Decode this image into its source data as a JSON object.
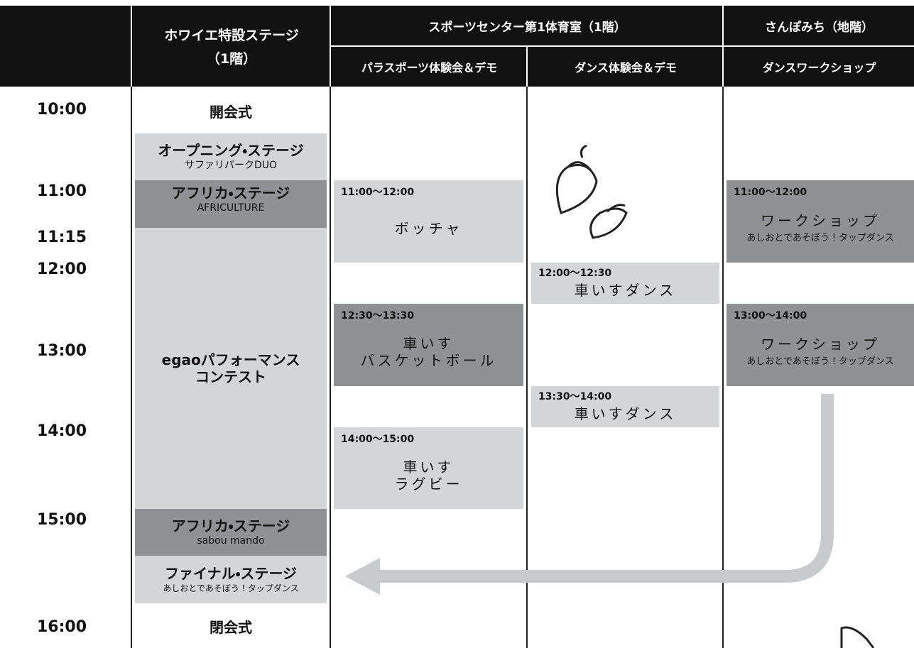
{
  "header": {
    "foyer": [
      "ホワイエ特設ステージ",
      "（1階）"
    ],
    "sports_center": "スポーツセンター第1体育室（1階）",
    "sanpomichi": "さんぽみち（地階）",
    "programs": [
      "パラスポーツ体験会＆デモ",
      "ダンス体験会＆デモ",
      "ダンスワークショップ"
    ]
  },
  "times": [
    "10:00",
    "11:00",
    "11:15",
    "12:00",
    "13:00",
    "14:00",
    "15:00",
    "16:00"
  ],
  "foyer_events": [
    {
      "title": [
        "開会式"
      ]
    },
    {
      "title": [
        "オープニング・ステージ"
      ],
      "subtitle": "サファリパークDUO"
    },
    {
      "title": [
        "アフリカ・ステージ"
      ],
      "subtitle": "AFRICULTURE"
    },
    {
      "title": [
        "egaoパフォーマンス",
        "コンテスト"
      ]
    },
    {
      "title": [
        "アフリカ・ステージ"
      ],
      "subtitle": "sabou mando"
    },
    {
      "title": [
        "ファイナル・ステージ"
      ],
      "subtitle": "あしおとであそぼう！タップダンス"
    },
    {
      "title": [
        "閉会式"
      ]
    }
  ],
  "para_sports_events": [
    {
      "time": "11:00〜12:00",
      "title": [
        "ボッチャ"
      ]
    },
    {
      "time": "12:30〜13:30",
      "title": [
        "車いす",
        "バスケットボール"
      ]
    },
    {
      "time": "14:00〜15:00",
      "title": [
        "車いす",
        "ラグビー"
      ]
    }
  ],
  "dance_events": [
    {
      "time": "12:00〜12:30",
      "title": [
        "車いすダンス"
      ]
    },
    {
      "time": "13:30〜14:00",
      "title": [
        "車いすダンス"
      ]
    }
  ],
  "workshop_events": [
    {
      "time": "11:00〜12:00",
      "title": [
        "ワークショップ"
      ],
      "subtitle": "あしおとであそぼう！タップダンス"
    },
    {
      "time": "13:00〜14:00",
      "title": [
        "ワークショップ"
      ],
      "subtitle": "あしおとであそぼう！タップダンス"
    }
  ]
}
